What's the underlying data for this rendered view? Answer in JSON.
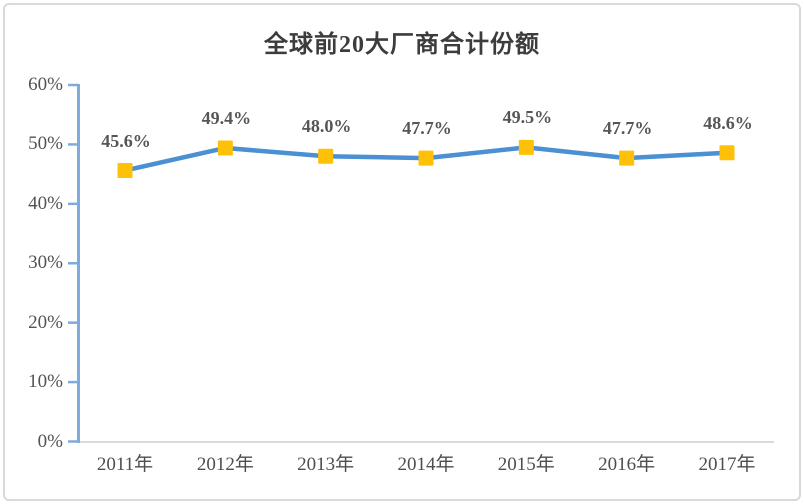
{
  "chart_data": {
    "type": "line",
    "title": "全球前20大厂商合计份额",
    "categories": [
      "2011年",
      "2012年",
      "2013年",
      "2014年",
      "2015年",
      "2016年",
      "2017年"
    ],
    "series": [
      {
        "name": "全球前20大厂商合计份额",
        "values": [
          45.6,
          49.4,
          48.0,
          47.7,
          49.5,
          47.7,
          48.6
        ]
      }
    ],
    "data_labels": [
      "45.6%",
      "49.4%",
      "48.0%",
      "47.7%",
      "49.5%",
      "47.7%",
      "48.6%"
    ],
    "y_ticks": [
      "0%",
      "10%",
      "20%",
      "30%",
      "40%",
      "50%",
      "60%"
    ],
    "ylim": [
      0,
      60
    ],
    "grid": false,
    "legend": "none",
    "marker_shape": "square",
    "colors": {
      "line": "#4a90d2",
      "marker": "#ffc008",
      "axis": "#7fabdc",
      "baseline": "#d9d9d9",
      "tick_label": "#535353",
      "data_label": "#565656",
      "title": "#3c3c3c",
      "frame_border": "#d7d9db"
    }
  }
}
